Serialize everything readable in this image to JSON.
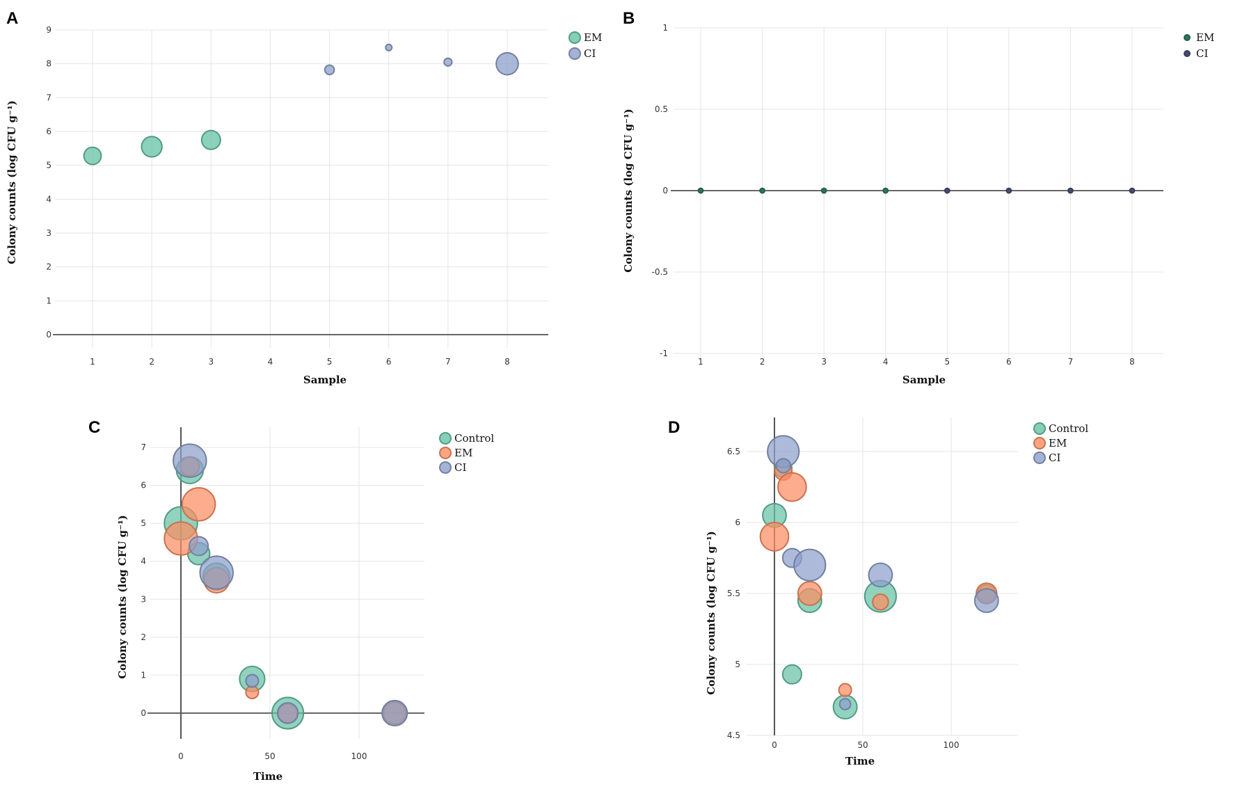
{
  "colors": {
    "Control": "#66c2a5",
    "EM": "#fc8d62",
    "CI": "#8da0cb",
    "EM_dark": "#2e7560",
    "CI_dark": "#474c70"
  },
  "chart_data": [
    {
      "panel": "A",
      "type": "scatter",
      "xlabel": "Sample",
      "ylabel": "Colony counts (log CFU g⁻¹)",
      "xticks": [
        1,
        2,
        3,
        4,
        5,
        6,
        7,
        8
      ],
      "yticks": [
        0,
        1,
        2,
        3,
        4,
        5,
        6,
        7,
        8,
        9
      ],
      "xlim": [
        1,
        8
      ],
      "ylim": [
        0,
        9
      ],
      "legend": "top-right",
      "grid": true,
      "series": [
        {
          "name": "EM",
          "color_key": "Control",
          "points": [
            {
              "x": 1,
              "y": 5.28,
              "size": 11
            },
            {
              "x": 2,
              "y": 5.55,
              "size": 13
            },
            {
              "x": 3,
              "y": 5.75,
              "size": 12
            }
          ]
        },
        {
          "name": "CI",
          "color_key": "CI",
          "points": [
            {
              "x": 5,
              "y": 7.82,
              "size": 6
            },
            {
              "x": 6,
              "y": 8.48,
              "size": 4
            },
            {
              "x": 7,
              "y": 8.05,
              "size": 5
            },
            {
              "x": 8,
              "y": 8.0,
              "size": 14
            }
          ]
        }
      ]
    },
    {
      "panel": "B",
      "type": "scatter",
      "xlabel": "Sample",
      "ylabel": "Colony counts (log CFU g⁻¹)",
      "xticks": [
        1,
        2,
        3,
        4,
        5,
        6,
        7,
        8
      ],
      "yticks": [
        -1,
        -0.5,
        0,
        0.5,
        1
      ],
      "xlim": [
        1,
        8
      ],
      "ylim": [
        -1,
        1
      ],
      "legend": "top-right",
      "grid": true,
      "series": [
        {
          "name": "EM",
          "color_key": "EM_dark",
          "points": [
            {
              "x": 1,
              "y": 0,
              "size": 3
            },
            {
              "x": 2,
              "y": 0,
              "size": 3
            },
            {
              "x": 3,
              "y": 0,
              "size": 3
            },
            {
              "x": 4,
              "y": 0,
              "size": 3
            }
          ]
        },
        {
          "name": "CI",
          "color_key": "CI_dark",
          "points": [
            {
              "x": 5,
              "y": 0,
              "size": 3
            },
            {
              "x": 6,
              "y": 0,
              "size": 3
            },
            {
              "x": 7,
              "y": 0,
              "size": 3
            },
            {
              "x": 8,
              "y": 0,
              "size": 3
            }
          ]
        }
      ]
    },
    {
      "panel": "C",
      "type": "scatter",
      "xlabel": "Time",
      "ylabel": "Colony counts (log CFU g⁻¹)",
      "xticks": [
        0,
        50,
        100
      ],
      "yticks": [
        0,
        1,
        2,
        3,
        4,
        5,
        6,
        7
      ],
      "xlim": [
        0,
        120
      ],
      "ylim": [
        0,
        7
      ],
      "legend": "top-right",
      "grid": true,
      "series": [
        {
          "name": "Control",
          "color_key": "Control",
          "points": [
            {
              "x": 5,
              "y": 6.4,
              "size": 17
            },
            {
              "x": 0,
              "y": 5.0,
              "size": 21
            },
            {
              "x": 10,
              "y": 4.2,
              "size": 14
            },
            {
              "x": 20,
              "y": 3.6,
              "size": 17
            },
            {
              "x": 40,
              "y": 0.9,
              "size": 16
            },
            {
              "x": 60,
              "y": 0,
              "size": 20
            },
            {
              "x": 120,
              "y": 0,
              "size": 15
            }
          ]
        },
        {
          "name": "EM",
          "color_key": "EM",
          "points": [
            {
              "x": 5,
              "y": 6.5,
              "size": 12
            },
            {
              "x": 10,
              "y": 5.5,
              "size": 21
            },
            {
              "x": 0,
              "y": 4.6,
              "size": 21
            },
            {
              "x": 20,
              "y": 3.5,
              "size": 16
            },
            {
              "x": 40,
              "y": 0.55,
              "size": 8
            },
            {
              "x": 60,
              "y": 0,
              "size": 12
            },
            {
              "x": 120,
              "y": 0,
              "size": 14
            }
          ]
        },
        {
          "name": "CI",
          "color_key": "CI",
          "points": [
            {
              "x": 5,
              "y": 6.65,
              "size": 21
            },
            {
              "x": 10,
              "y": 4.4,
              "size": 12
            },
            {
              "x": 20,
              "y": 3.7,
              "size": 21
            },
            {
              "x": 40,
              "y": 0.85,
              "size": 8
            },
            {
              "x": 60,
              "y": 0,
              "size": 13
            },
            {
              "x": 120,
              "y": 0,
              "size": 16
            }
          ]
        }
      ]
    },
    {
      "panel": "D",
      "type": "scatter",
      "xlabel": "Time",
      "ylabel": "Colony counts (log CFU g⁻¹)",
      "xticks": [
        0,
        50,
        100
      ],
      "yticks": [
        4.5,
        5,
        5.5,
        6,
        6.5
      ],
      "xlim": [
        0,
        120
      ],
      "ylim": [
        4.5,
        6.7
      ],
      "legend": "top-right",
      "grid": true,
      "series": [
        {
          "name": "Control",
          "color_key": "Control",
          "points": [
            {
              "x": 0,
              "y": 6.05,
              "size": 15
            },
            {
              "x": 5,
              "y": 6.38,
              "size": 11
            },
            {
              "x": 10,
              "y": 4.93,
              "size": 12
            },
            {
              "x": 20,
              "y": 5.45,
              "size": 15
            },
            {
              "x": 40,
              "y": 4.7,
              "size": 15
            },
            {
              "x": 60,
              "y": 5.48,
              "size": 20
            },
            {
              "x": 120,
              "y": 5.5,
              "size": 11
            }
          ]
        },
        {
          "name": "EM",
          "color_key": "EM",
          "points": [
            {
              "x": 0,
              "y": 5.9,
              "size": 18
            },
            {
              "x": 5,
              "y": 6.36,
              "size": 11
            },
            {
              "x": 10,
              "y": 6.25,
              "size": 18
            },
            {
              "x": 20,
              "y": 5.5,
              "size": 15
            },
            {
              "x": 40,
              "y": 4.82,
              "size": 8
            },
            {
              "x": 60,
              "y": 5.44,
              "size": 10
            },
            {
              "x": 120,
              "y": 5.5,
              "size": 13
            }
          ]
        },
        {
          "name": "CI",
          "color_key": "CI",
          "points": [
            {
              "x": 5,
              "y": 6.5,
              "size": 20
            },
            {
              "x": 5,
              "y": 6.4,
              "size": 9
            },
            {
              "x": 10,
              "y": 5.75,
              "size": 12
            },
            {
              "x": 20,
              "y": 5.7,
              "size": 20
            },
            {
              "x": 40,
              "y": 4.72,
              "size": 7
            },
            {
              "x": 60,
              "y": 5.63,
              "size": 15
            },
            {
              "x": 120,
              "y": 5.45,
              "size": 15
            }
          ]
        }
      ]
    }
  ]
}
